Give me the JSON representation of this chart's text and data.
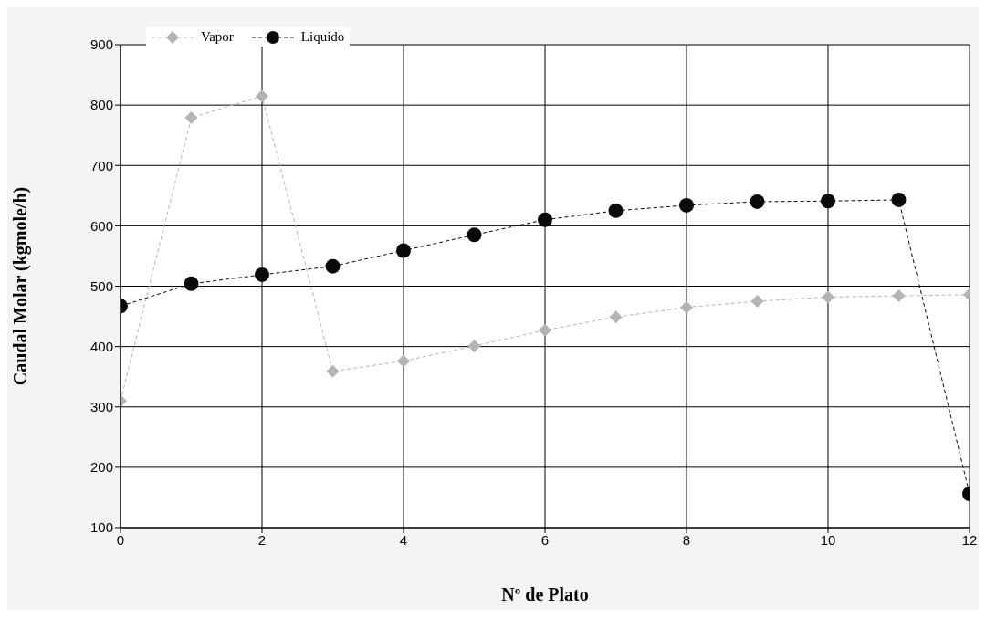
{
  "chart_data": {
    "type": "line",
    "xlabel": "Nº de Plato",
    "ylabel": "Caudal Molar  (kgmole/h)",
    "x": [
      0,
      1,
      2,
      3,
      4,
      5,
      6,
      7,
      8,
      9,
      10,
      11,
      12
    ],
    "series": [
      {
        "name": "Vapor",
        "color": "#b4b4b4",
        "marker": "diamond",
        "values": [
          310,
          779,
          815,
          359,
          376,
          401,
          427,
          449,
          465,
          475,
          482,
          484,
          486
        ]
      },
      {
        "name": "Liquido",
        "color": "#0a0a0a",
        "marker": "circle",
        "values": [
          467,
          504,
          519,
          533,
          559,
          585,
          610,
          625,
          634,
          640,
          641,
          643,
          156
        ]
      }
    ],
    "xlim": [
      0,
      12
    ],
    "xticks": [
      0,
      2,
      4,
      6,
      8,
      10,
      12
    ],
    "ylim": [
      100,
      900
    ],
    "yticks": [
      100,
      200,
      300,
      400,
      500,
      600,
      700,
      800,
      900
    ],
    "grid": true,
    "legend": "top left",
    "line_style": "dashed"
  }
}
